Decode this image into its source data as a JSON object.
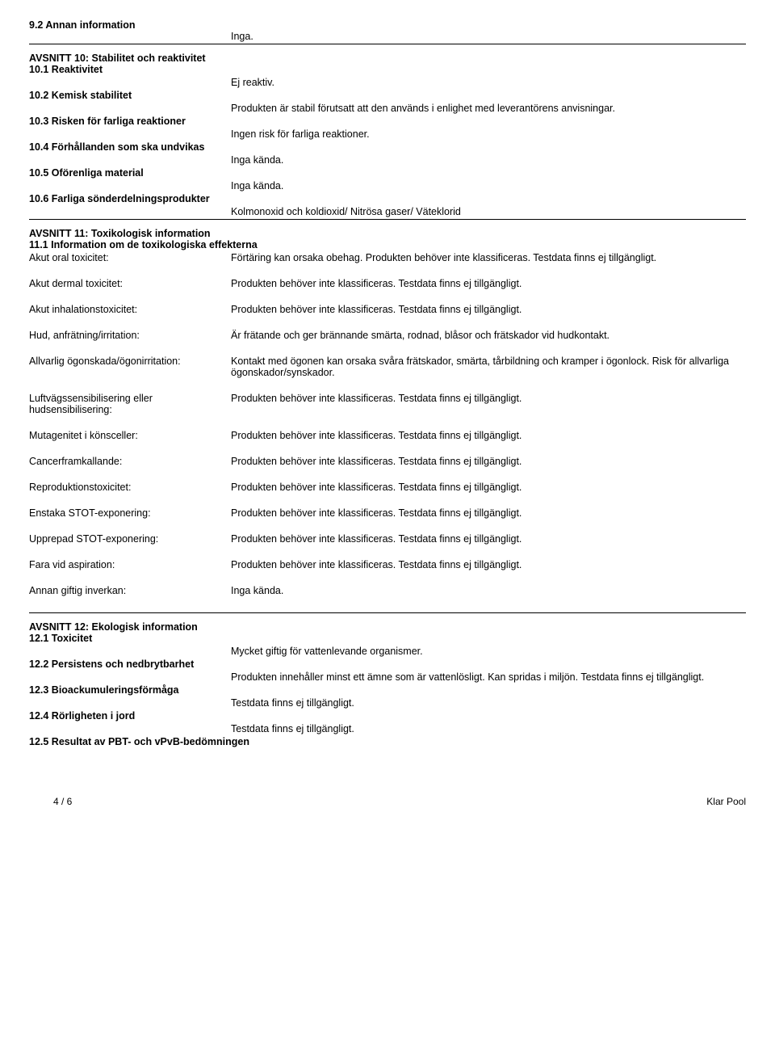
{
  "s9": {
    "h": "9.2 Annan information",
    "v": "Inga."
  },
  "s10": {
    "title": "AVSNITT 10: Stabilitet och reaktivitet",
    "r1": {
      "h": "10.1 Reaktivitet",
      "v": "Ej reaktiv."
    },
    "r2": {
      "h": "10.2 Kemisk stabilitet",
      "v": "Produkten är stabil förutsatt att den används i enlighet med leverantörens anvisningar."
    },
    "r3": {
      "h": "10.3 Risken för farliga reaktioner",
      "v": "Ingen risk för farliga reaktioner."
    },
    "r4": {
      "h": "10.4 Förhållanden som ska undvikas",
      "v": "Inga kända."
    },
    "r5": {
      "h": "10.5 Oförenliga material",
      "v": "Inga kända."
    },
    "r6": {
      "h": "10.6 Farliga sönderdelningsprodukter",
      "v": "Kolmonoxid och koldioxid/ Nitrösa gaser/ Väteklorid"
    }
  },
  "s11": {
    "title": "AVSNITT 11: Toxikologisk information",
    "sub": "11.1 Information om de toxikologiska effekterna",
    "rows": [
      {
        "l": "Akut oral toxicitet:",
        "v": "Förtäring kan orsaka obehag. Produkten behöver inte klassificeras. Testdata finns ej tillgängligt."
      },
      {
        "l": "Akut dermal toxicitet:",
        "v": "Produkten behöver inte klassificeras. Testdata finns ej tillgängligt."
      },
      {
        "l": "Akut inhalationstoxicitet:",
        "v": "Produkten behöver inte klassificeras. Testdata finns ej tillgängligt."
      },
      {
        "l": "Hud, anfrätning/irritation:",
        "v": "Är frätande och ger brännande smärta, rodnad, blåsor och frätskador vid hudkontakt."
      },
      {
        "l": "Allvarlig ögonskada/ögonirritation:",
        "v": "Kontakt med ögonen kan orsaka svåra frätskador, smärta, tårbildning och kramper i ögonlock. Risk för allvarliga ögonskador/synskador."
      },
      {
        "l": "Luftvägssensibilisering eller hudsensibilisering:",
        "v": "Produkten behöver inte klassificeras. Testdata finns ej tillgängligt."
      },
      {
        "l": "Mutagenitet i könsceller:",
        "v": "Produkten behöver inte klassificeras. Testdata finns ej tillgängligt."
      },
      {
        "l": "Cancerframkallande:",
        "v": "Produkten behöver inte klassificeras. Testdata finns ej tillgängligt."
      },
      {
        "l": "Reproduktionstoxicitet:",
        "v": "Produkten behöver inte klassificeras. Testdata finns ej tillgängligt."
      },
      {
        "l": "Enstaka STOT-exponering:",
        "v": "Produkten behöver inte klassificeras. Testdata finns ej tillgängligt."
      },
      {
        "l": "Upprepad STOT-exponering:",
        "v": "Produkten behöver inte klassificeras. Testdata finns ej tillgängligt."
      },
      {
        "l": "Fara vid aspiration:",
        "v": "Produkten behöver inte klassificeras. Testdata finns ej tillgängligt."
      },
      {
        "l": "Annan giftig inverkan:",
        "v": "Inga kända."
      }
    ]
  },
  "s12": {
    "title": "AVSNITT 12: Ekologisk information",
    "r1": {
      "h": "12.1 Toxicitet",
      "v": "Mycket giftig för vattenlevande organismer."
    },
    "r2": {
      "h": "12.2 Persistens och nedbrytbarhet",
      "v": "Produkten innehåller minst ett ämne som är vattenlösligt. Kan spridas i miljön. Testdata finns ej tillgängligt."
    },
    "r3": {
      "h": "12.3 Bioackumuleringsförmåga",
      "v": "Testdata finns ej tillgängligt."
    },
    "r4": {
      "h": "12.4 Rörligheten i jord",
      "v": "Testdata finns ej tillgängligt."
    },
    "r5": {
      "h": "12.5 Resultat av PBT- och vPvB-bedömningen"
    }
  },
  "footer": {
    "page": "4 / 6",
    "product": "Klar Pool"
  }
}
